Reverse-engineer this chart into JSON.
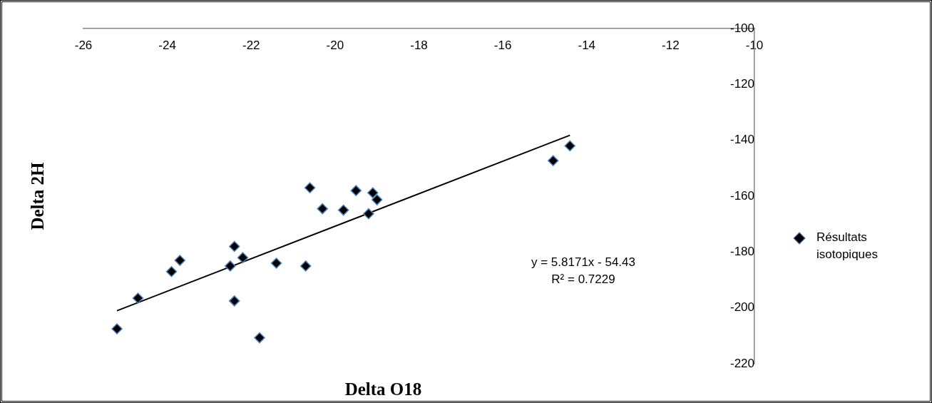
{
  "chart_data": {
    "type": "scatter",
    "xlabel": "Delta O18",
    "ylabel": "Delta 2H",
    "annotations": [
      "y = 5.8171x - 54.43",
      "R² = 0.7229"
    ],
    "xlim": [
      -26,
      -10
    ],
    "xticks": [
      -26,
      -24,
      -22,
      -20,
      -18,
      -16,
      -14,
      -12,
      -10
    ],
    "ylim": [
      -220,
      -100
    ],
    "yticks": [
      -220,
      -200,
      -180,
      -160,
      -140,
      -120,
      -100
    ],
    "legend": "right",
    "marker": "diamond",
    "series": [
      {
        "name": "Résultats isotopiques",
        "color": "#000000",
        "x": [
          -25.2,
          -24.7,
          -23.9,
          -23.7,
          -22.5,
          -22.4,
          -22.4,
          -22.2,
          -21.8,
          -21.4,
          -20.7,
          -20.6,
          -20.3,
          -19.8,
          -19.5,
          -19.1,
          -19.0,
          -19.2,
          -14.8,
          -14.4
        ],
        "values": [
          -207.5,
          -196.5,
          -187,
          -183,
          -185,
          -178,
          -197.5,
          -182,
          -210.7,
          -184,
          -185,
          -157,
          -164.5,
          -165,
          -158,
          -158.8,
          -161.3,
          -166.3,
          -147.3,
          -142
        ]
      },
      {
        "type": "line",
        "marker": "none",
        "color": "#000000",
        "x": [
          -25.2,
          -14.4
        ],
        "values": [
          -201,
          -138.2
        ]
      }
    ]
  }
}
